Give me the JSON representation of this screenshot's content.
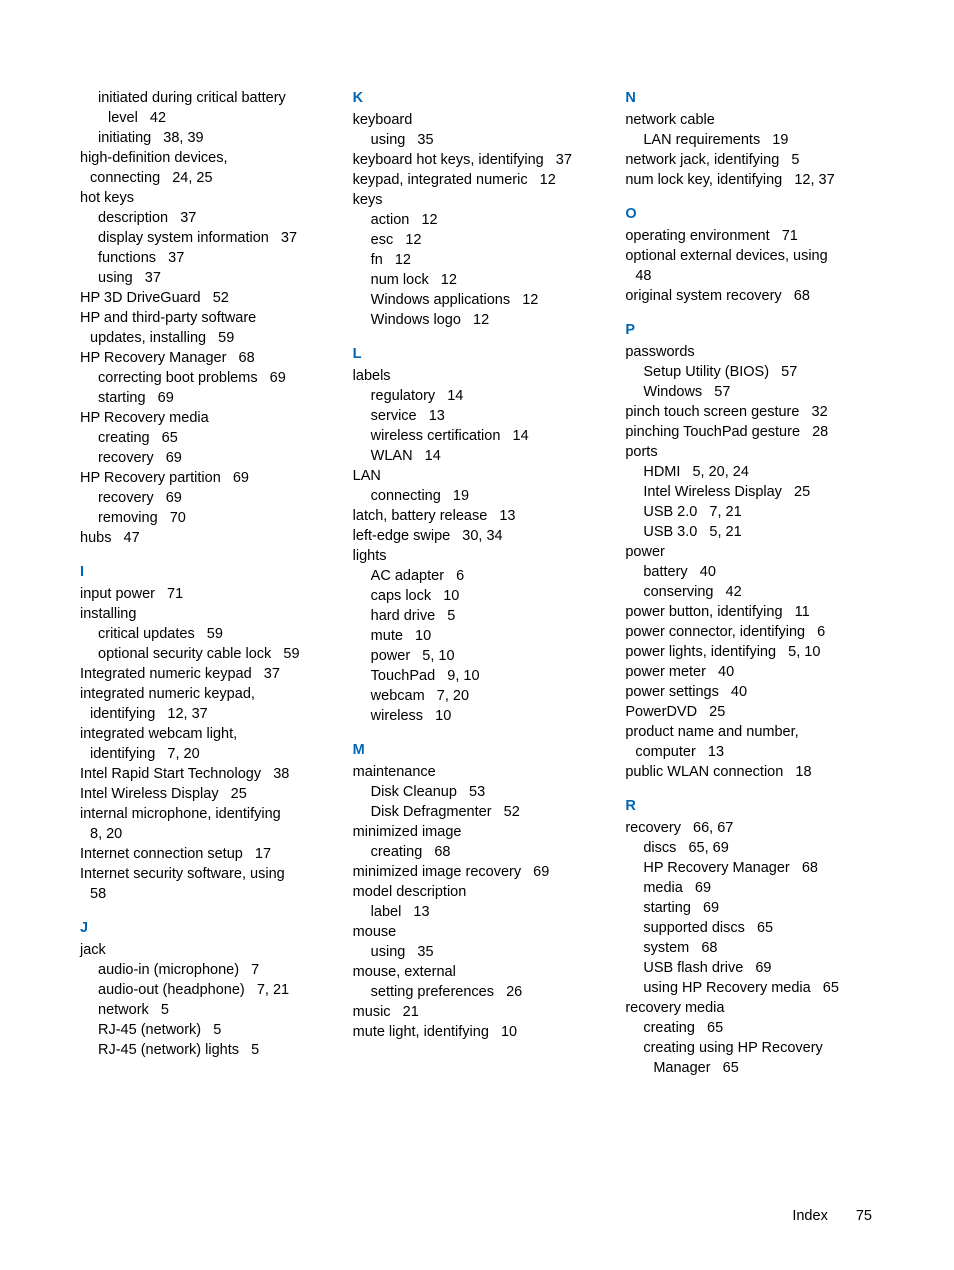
{
  "section_color": "#0066b3",
  "text_color": "#000000",
  "background_color": "#ffffff",
  "font_family": "Arial, Helvetica, sans-serif",
  "entry_fontsize": 14.5,
  "line_height": 1.38,
  "columns": [
    {
      "groups": [
        {
          "letter": null,
          "items": [
            {
              "text": "initiated during critical battery",
              "indent": "sub"
            },
            {
              "text": "level",
              "indent": "sub2",
              "pages": "42"
            },
            {
              "text": "initiating",
              "indent": "sub",
              "pages": "38, 39"
            },
            {
              "text": "high-definition devices,",
              "indent": ""
            },
            {
              "text": "connecting",
              "indent": "cont",
              "pages": "24, 25"
            },
            {
              "text": "hot keys",
              "indent": ""
            },
            {
              "text": "description",
              "indent": "sub",
              "pages": "37"
            },
            {
              "text": "display system information",
              "indent": "sub",
              "pages": "37"
            },
            {
              "text": "functions",
              "indent": "sub",
              "pages": "37"
            },
            {
              "text": "using",
              "indent": "sub",
              "pages": "37"
            },
            {
              "text": "HP 3D DriveGuard",
              "indent": "",
              "pages": "52"
            },
            {
              "text": "HP and third-party software",
              "indent": ""
            },
            {
              "text": "updates, installing",
              "indent": "cont",
              "pages": "59"
            },
            {
              "text": "HP Recovery Manager",
              "indent": "",
              "pages": "68"
            },
            {
              "text": "correcting boot problems",
              "indent": "sub",
              "pages": "69"
            },
            {
              "text": "starting",
              "indent": "sub",
              "pages": "69"
            },
            {
              "text": "HP Recovery media",
              "indent": ""
            },
            {
              "text": "creating",
              "indent": "sub",
              "pages": "65"
            },
            {
              "text": "recovery",
              "indent": "sub",
              "pages": "69"
            },
            {
              "text": "HP Recovery partition",
              "indent": "",
              "pages": "69"
            },
            {
              "text": "recovery",
              "indent": "sub",
              "pages": "69"
            },
            {
              "text": "removing",
              "indent": "sub",
              "pages": "70"
            },
            {
              "text": "hubs",
              "indent": "",
              "pages": "47"
            }
          ]
        },
        {
          "letter": "I",
          "items": [
            {
              "text": "input power",
              "indent": "",
              "pages": "71"
            },
            {
              "text": "installing",
              "indent": ""
            },
            {
              "text": "critical updates",
              "indent": "sub",
              "pages": "59"
            },
            {
              "text": "optional security cable lock",
              "indent": "sub",
              "pages": "59"
            },
            {
              "text": "Integrated numeric keypad",
              "indent": "",
              "pages": "37"
            },
            {
              "text": "integrated numeric keypad,",
              "indent": ""
            },
            {
              "text": "identifying",
              "indent": "cont",
              "pages": "12, 37"
            },
            {
              "text": "integrated webcam light,",
              "indent": ""
            },
            {
              "text": "identifying",
              "indent": "cont",
              "pages": "7, 20"
            },
            {
              "text": "Intel Rapid Start Technology",
              "indent": "",
              "pages": "38"
            },
            {
              "text": "Intel Wireless Display",
              "indent": "",
              "pages": "25"
            },
            {
              "text": "internal microphone, identifying",
              "indent": ""
            },
            {
              "text": "8, 20",
              "indent": "cont"
            },
            {
              "text": "Internet connection setup",
              "indent": "",
              "pages": "17"
            },
            {
              "text": "Internet security software, using",
              "indent": ""
            },
            {
              "text": "58",
              "indent": "cont"
            }
          ]
        },
        {
          "letter": "J",
          "items": [
            {
              "text": "jack",
              "indent": ""
            },
            {
              "text": "audio-in (microphone)",
              "indent": "sub",
              "pages": "7"
            },
            {
              "text": "audio-out (headphone)",
              "indent": "sub",
              "pages": "7, 21"
            },
            {
              "text": "network",
              "indent": "sub",
              "pages": "5"
            },
            {
              "text": "RJ-45 (network)",
              "indent": "sub",
              "pages": "5"
            },
            {
              "text": "RJ-45 (network) lights",
              "indent": "sub",
              "pages": "5"
            }
          ]
        }
      ]
    },
    {
      "groups": [
        {
          "letter": "K",
          "items": [
            {
              "text": "keyboard",
              "indent": ""
            },
            {
              "text": "using",
              "indent": "sub",
              "pages": "35"
            },
            {
              "text": "keyboard hot keys, identifying",
              "indent": "",
              "pages": "37"
            },
            {
              "text": "keypad, integrated numeric",
              "indent": "",
              "pages": "12"
            },
            {
              "text": "keys",
              "indent": ""
            },
            {
              "text": "action",
              "indent": "sub",
              "pages": "12"
            },
            {
              "text": "esc",
              "indent": "sub",
              "pages": "12"
            },
            {
              "text": "fn",
              "indent": "sub",
              "pages": "12"
            },
            {
              "text": "num lock",
              "indent": "sub",
              "pages": "12"
            },
            {
              "text": "Windows applications",
              "indent": "sub",
              "pages": "12"
            },
            {
              "text": "Windows logo",
              "indent": "sub",
              "pages": "12"
            }
          ]
        },
        {
          "letter": "L",
          "items": [
            {
              "text": "labels",
              "indent": ""
            },
            {
              "text": "regulatory",
              "indent": "sub",
              "pages": "14"
            },
            {
              "text": "service",
              "indent": "sub",
              "pages": "13"
            },
            {
              "text": "wireless certification",
              "indent": "sub",
              "pages": "14"
            },
            {
              "text": "WLAN",
              "indent": "sub",
              "pages": "14"
            },
            {
              "text": "LAN",
              "indent": ""
            },
            {
              "text": "connecting",
              "indent": "sub",
              "pages": "19"
            },
            {
              "text": "latch, battery release",
              "indent": "",
              "pages": "13"
            },
            {
              "text": "left-edge swipe",
              "indent": "",
              "pages": "30, 34"
            },
            {
              "text": "lights",
              "indent": ""
            },
            {
              "text": "AC adapter",
              "indent": "sub",
              "pages": "6"
            },
            {
              "text": "caps lock",
              "indent": "sub",
              "pages": "10"
            },
            {
              "text": "hard drive",
              "indent": "sub",
              "pages": "5"
            },
            {
              "text": "mute",
              "indent": "sub",
              "pages": "10"
            },
            {
              "text": "power",
              "indent": "sub",
              "pages": "5, 10"
            },
            {
              "text": "TouchPad",
              "indent": "sub",
              "pages": "9, 10"
            },
            {
              "text": "webcam",
              "indent": "sub",
              "pages": "7, 20"
            },
            {
              "text": "wireless",
              "indent": "sub",
              "pages": "10"
            }
          ]
        },
        {
          "letter": "M",
          "items": [
            {
              "text": "maintenance",
              "indent": ""
            },
            {
              "text": "Disk Cleanup",
              "indent": "sub",
              "pages": "53"
            },
            {
              "text": "Disk Defragmenter",
              "indent": "sub",
              "pages": "52"
            },
            {
              "text": "minimized image",
              "indent": ""
            },
            {
              "text": "creating",
              "indent": "sub",
              "pages": "68"
            },
            {
              "text": "minimized image recovery",
              "indent": "",
              "pages": "69"
            },
            {
              "text": "model description",
              "indent": ""
            },
            {
              "text": "label",
              "indent": "sub",
              "pages": "13"
            },
            {
              "text": "mouse",
              "indent": ""
            },
            {
              "text": "using",
              "indent": "sub",
              "pages": "35"
            },
            {
              "text": "mouse, external",
              "indent": ""
            },
            {
              "text": "setting preferences",
              "indent": "sub",
              "pages": "26"
            },
            {
              "text": "music",
              "indent": "",
              "pages": "21"
            },
            {
              "text": "mute light, identifying",
              "indent": "",
              "pages": "10"
            }
          ]
        }
      ]
    },
    {
      "groups": [
        {
          "letter": "N",
          "items": [
            {
              "text": "network cable",
              "indent": ""
            },
            {
              "text": "LAN requirements",
              "indent": "sub",
              "pages": "19"
            },
            {
              "text": "network jack, identifying",
              "indent": "",
              "pages": "5"
            },
            {
              "text": "num lock key, identifying",
              "indent": "",
              "pages": "12, 37"
            }
          ]
        },
        {
          "letter": "O",
          "items": [
            {
              "text": "operating environment",
              "indent": "",
              "pages": "71"
            },
            {
              "text": "optional external devices, using",
              "indent": ""
            },
            {
              "text": "48",
              "indent": "cont"
            },
            {
              "text": "original system recovery",
              "indent": "",
              "pages": "68"
            }
          ]
        },
        {
          "letter": "P",
          "items": [
            {
              "text": "passwords",
              "indent": ""
            },
            {
              "text": "Setup Utility (BIOS)",
              "indent": "sub",
              "pages": "57"
            },
            {
              "text": "Windows",
              "indent": "sub",
              "pages": "57"
            },
            {
              "text": "pinch touch screen gesture",
              "indent": "",
              "pages": "32"
            },
            {
              "text": "pinching TouchPad gesture",
              "indent": "",
              "pages": "28"
            },
            {
              "text": "ports",
              "indent": ""
            },
            {
              "text": "HDMI",
              "indent": "sub",
              "pages": "5, 20, 24"
            },
            {
              "text": "Intel Wireless Display",
              "indent": "sub",
              "pages": "25"
            },
            {
              "text": "USB 2.0",
              "indent": "sub",
              "pages": "7, 21"
            },
            {
              "text": "USB 3.0",
              "indent": "sub",
              "pages": "5, 21"
            },
            {
              "text": "power",
              "indent": ""
            },
            {
              "text": "battery",
              "indent": "sub",
              "pages": "40"
            },
            {
              "text": "conserving",
              "indent": "sub",
              "pages": "42"
            },
            {
              "text": "power button, identifying",
              "indent": "",
              "pages": "11"
            },
            {
              "text": "power connector, identifying",
              "indent": "",
              "pages": "6"
            },
            {
              "text": "power lights, identifying",
              "indent": "",
              "pages": "5, 10"
            },
            {
              "text": "power meter",
              "indent": "",
              "pages": "40"
            },
            {
              "text": "power settings",
              "indent": "",
              "pages": "40"
            },
            {
              "text": "PowerDVD",
              "indent": "",
              "pages": "25"
            },
            {
              "text": "product name and number,",
              "indent": ""
            },
            {
              "text": "computer",
              "indent": "cont",
              "pages": "13"
            },
            {
              "text": "public WLAN connection",
              "indent": "",
              "pages": "18"
            }
          ]
        },
        {
          "letter": "R",
          "items": [
            {
              "text": "recovery",
              "indent": "",
              "pages": "66, 67"
            },
            {
              "text": "discs",
              "indent": "sub",
              "pages": "65, 69"
            },
            {
              "text": "HP Recovery Manager",
              "indent": "sub",
              "pages": "68"
            },
            {
              "text": "media",
              "indent": "sub",
              "pages": "69"
            },
            {
              "text": "starting",
              "indent": "sub",
              "pages": "69"
            },
            {
              "text": "supported discs",
              "indent": "sub",
              "pages": "65"
            },
            {
              "text": "system",
              "indent": "sub",
              "pages": "68"
            },
            {
              "text": "USB flash drive",
              "indent": "sub",
              "pages": "69"
            },
            {
              "text": "using HP Recovery media",
              "indent": "sub",
              "pages": "65"
            },
            {
              "text": "recovery media",
              "indent": ""
            },
            {
              "text": "creating",
              "indent": "sub",
              "pages": "65"
            },
            {
              "text": "creating using HP Recovery",
              "indent": "sub"
            },
            {
              "text": "Manager",
              "indent": "sub2",
              "pages": "65"
            }
          ]
        }
      ]
    }
  ],
  "footer": {
    "label": "Index",
    "page": "75"
  }
}
